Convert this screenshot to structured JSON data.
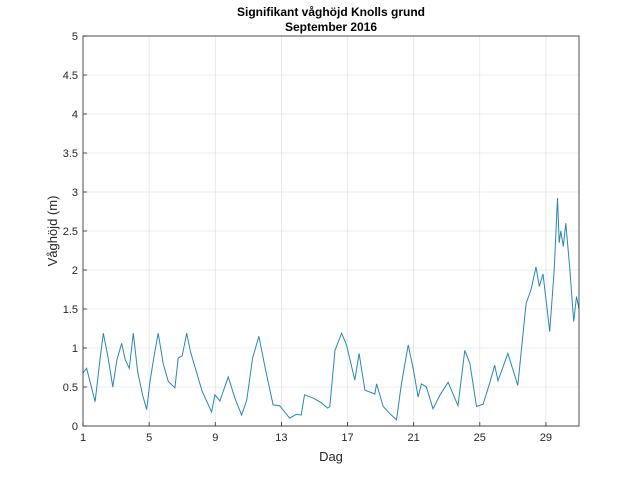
{
  "chart_data": {
    "type": "line",
    "title": "Signifikant våghöjd Knolls grund",
    "subtitle": "September 2016",
    "xlabel": "Dag",
    "ylabel": "Våghöjd (m)",
    "xlim": [
      1,
      31
    ],
    "ylim": [
      0,
      5
    ],
    "xticks": [
      1,
      5,
      9,
      13,
      17,
      21,
      25,
      29
    ],
    "yticks": [
      0,
      0.5,
      1,
      1.5,
      2,
      2.5,
      3,
      3.5,
      4,
      4.5,
      5
    ],
    "ytick_labels": [
      "0",
      "0.5",
      "1",
      "1.5",
      "2",
      "2.5",
      "3",
      "3.5",
      "4",
      "4.5",
      "5"
    ],
    "grid": true,
    "color": "#2a86b8",
    "series": [
      {
        "name": "Våghöjd",
        "x": [
          1.0,
          1.22,
          1.45,
          1.73,
          2.0,
          2.23,
          2.5,
          2.8,
          3.05,
          3.34,
          3.55,
          3.8,
          4.04,
          4.3,
          4.6,
          4.85,
          5.05,
          5.3,
          5.55,
          5.85,
          6.16,
          6.56,
          6.76,
          7.0,
          7.27,
          7.5,
          7.77,
          8.2,
          8.78,
          8.98,
          9.28,
          9.78,
          10.2,
          10.59,
          10.9,
          11.26,
          11.64,
          12.0,
          12.5,
          12.9,
          13.5,
          13.9,
          14.2,
          14.4,
          14.9,
          15.4,
          15.8,
          15.93,
          16.24,
          16.64,
          16.94,
          17.44,
          17.7,
          18.05,
          18.65,
          18.76,
          19.16,
          19.6,
          19.96,
          20.26,
          20.67,
          21.0,
          21.27,
          21.47,
          21.77,
          22.17,
          22.6,
          23.08,
          23.68,
          24.09,
          24.4,
          24.8,
          25.2,
          25.6,
          25.9,
          26.1,
          26.7,
          27.3,
          27.8,
          28.1,
          28.4,
          28.6,
          28.82,
          29.23,
          29.5,
          29.7,
          29.8,
          29.9,
          30.05,
          30.2,
          30.45,
          30.68,
          30.85,
          31.0
        ],
        "y": [
          0.68,
          0.74,
          0.55,
          0.31,
          0.8,
          1.19,
          0.9,
          0.5,
          0.85,
          1.06,
          0.85,
          0.74,
          1.19,
          0.7,
          0.4,
          0.21,
          0.57,
          0.9,
          1.19,
          0.8,
          0.57,
          0.49,
          0.87,
          0.9,
          1.19,
          0.95,
          0.76,
          0.45,
          0.18,
          0.4,
          0.32,
          0.63,
          0.35,
          0.14,
          0.33,
          0.87,
          1.15,
          0.76,
          0.27,
          0.26,
          0.1,
          0.15,
          0.14,
          0.4,
          0.36,
          0.3,
          0.23,
          0.25,
          0.97,
          1.19,
          1.04,
          0.59,
          0.93,
          0.46,
          0.41,
          0.54,
          0.25,
          0.15,
          0.08,
          0.54,
          1.04,
          0.7,
          0.37,
          0.54,
          0.5,
          0.22,
          0.4,
          0.56,
          0.26,
          0.97,
          0.8,
          0.25,
          0.28,
          0.55,
          0.78,
          0.58,
          0.93,
          0.52,
          1.57,
          1.75,
          2.04,
          1.79,
          1.95,
          1.21,
          2.0,
          2.92,
          2.35,
          2.5,
          2.3,
          2.6,
          2.0,
          1.34,
          1.66,
          1.5
        ]
      }
    ]
  }
}
